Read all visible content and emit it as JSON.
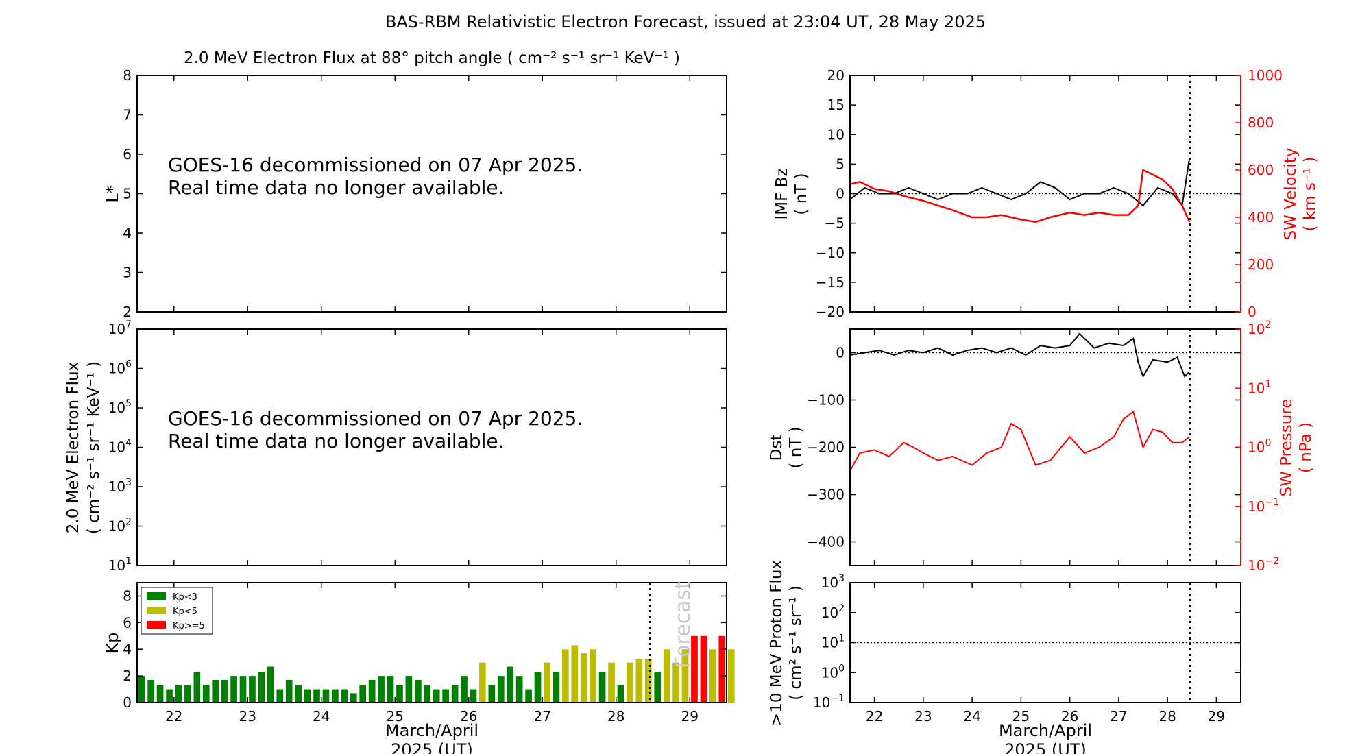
{
  "title": "BAS-RBM Relativistic Electron Forecast, issued at 23:04 UT, 28 May 2025",
  "colors": {
    "black": "#000000",
    "red": "#ff0000",
    "green": "#008000",
    "olive": "#bcbd00",
    "forecast_text": "#c8c8c8"
  },
  "notice": {
    "line1": "GOES-16 decommissioned on 07 Apr 2025.",
    "line2": "Real time data no longer available."
  },
  "x_axis": {
    "ticks": [
      "22",
      "23",
      "24",
      "25",
      "26",
      "27",
      "28",
      "29"
    ],
    "label_line1": "March/April",
    "label_line2": "2025 (UT)",
    "range_days": [
      21.5,
      29.5
    ],
    "issue_time_day": 28.46
  },
  "chart_data": [
    {
      "id": "lstar",
      "type": "heatmap",
      "title": "2.0 MeV Electron Flux at 88° pitch angle ( cm⁻² s⁻¹ sr⁻¹ KeV⁻¹ )",
      "ylabel": "L*",
      "ylim": [
        2,
        8
      ],
      "yticks": [
        "2",
        "3",
        "4",
        "5",
        "6",
        "7",
        "8"
      ]
    },
    {
      "id": "flux",
      "type": "line",
      "ylabel_line1": "2.0 MeV Electron Flux",
      "ylabel_line2": "( cm⁻² s⁻¹ sr⁻¹ KeV⁻¹ )",
      "scale": "log",
      "ylim": [
        10,
        10000000
      ],
      "ytick_exponents": [
        "1",
        "2",
        "3",
        "4",
        "5",
        "6",
        "7"
      ]
    },
    {
      "id": "kp",
      "type": "bar",
      "ylabel": "Kp",
      "ylim": [
        0,
        9
      ],
      "yticks": [
        "0",
        "2",
        "4",
        "6",
        "8"
      ],
      "legend": [
        "Kp<3",
        "Kp<5",
        "Kp>=5"
      ],
      "forecast_label": "Forecast",
      "bar_width_days": 0.125,
      "start_day": 21.5,
      "values": [
        2.0,
        1.7,
        1.3,
        1.0,
        1.3,
        1.3,
        2.3,
        1.3,
        1.7,
        1.7,
        2.0,
        2.0,
        2.0,
        2.3,
        2.7,
        1.0,
        1.7,
        1.3,
        1.0,
        1.0,
        1.0,
        1.0,
        1.0,
        0.7,
        1.3,
        1.7,
        2.0,
        2.0,
        1.3,
        2.0,
        1.7,
        1.3,
        1.0,
        1.0,
        1.3,
        2.0,
        1.0,
        3.0,
        1.3,
        2.0,
        2.7,
        2.0,
        1.0,
        2.3,
        3.0,
        2.3,
        4.0,
        4.3,
        3.7,
        4.0,
        2.3,
        3.0,
        1.3,
        3.0,
        3.3,
        3.3,
        2.3,
        4.0,
        3.0,
        4.0,
        5.0,
        5.0,
        4.0,
        5.0,
        4.0
      ]
    },
    {
      "id": "imf",
      "type": "line",
      "ylabel_line1": "IMF Bz",
      "ylabel_line2": "( nT )",
      "ylim": [
        -20,
        20
      ],
      "yticks": [
        "−20",
        "−15",
        "−10",
        "−5",
        "0",
        "5",
        "10",
        "15",
        "20"
      ],
      "y2label_line1": "SW Velocity",
      "y2label_line2": "( km s⁻¹ )",
      "y2lim": [
        0,
        1000
      ],
      "y2ticks": [
        "0",
        "200",
        "400",
        "600",
        "800",
        "1000"
      ],
      "series": [
        {
          "name": "IMF Bz",
          "axis": "left",
          "x": [
            21.5,
            21.8,
            22.1,
            22.4,
            22.7,
            23.0,
            23.3,
            23.6,
            23.9,
            24.2,
            24.5,
            24.8,
            25.1,
            25.4,
            25.7,
            26.0,
            26.3,
            26.6,
            26.9,
            27.2,
            27.5,
            27.8,
            28.1,
            28.3,
            28.45
          ],
          "y": [
            -1,
            1,
            0,
            0,
            1,
            0,
            -1,
            0,
            0,
            1,
            0,
            -1,
            0,
            2,
            1,
            -1,
            0,
            0,
            1,
            0,
            -2,
            1,
            0,
            -2,
            6
          ]
        },
        {
          "name": "SW Velocity",
          "axis": "right",
          "x": [
            21.5,
            21.7,
            22.0,
            22.3,
            22.6,
            23.0,
            23.3,
            23.6,
            24.0,
            24.3,
            24.6,
            25.0,
            25.3,
            25.6,
            26.0,
            26.3,
            26.6,
            26.9,
            27.2,
            27.4,
            27.5,
            27.7,
            27.9,
            28.1,
            28.3,
            28.45
          ],
          "y": [
            540,
            550,
            520,
            510,
            490,
            470,
            450,
            430,
            400,
            400,
            410,
            390,
            380,
            400,
            420,
            410,
            420,
            410,
            410,
            450,
            600,
            580,
            560,
            520,
            450,
            380
          ]
        }
      ]
    },
    {
      "id": "dst",
      "type": "line",
      "ylabel_line1": "Dst",
      "ylabel_line2": "( nT )",
      "ylim": [
        -450,
        50
      ],
      "yticks": [
        "−400",
        "−300",
        "−200",
        "−100",
        "0"
      ],
      "y2label_line1": "SW Pressure",
      "y2label_line2": "( nPa )",
      "scale2": "log",
      "y2lim": [
        0.01,
        100
      ],
      "y2tick_exponents": [
        "−2",
        "−1",
        "0",
        "1",
        "2"
      ],
      "series": [
        {
          "name": "Dst",
          "axis": "left",
          "x": [
            21.5,
            21.8,
            22.1,
            22.4,
            22.7,
            23.0,
            23.3,
            23.6,
            23.9,
            24.2,
            24.5,
            24.8,
            25.1,
            25.4,
            25.7,
            26.0,
            26.2,
            26.5,
            26.8,
            27.1,
            27.3,
            27.4,
            27.5,
            27.7,
            28.0,
            28.2,
            28.35,
            28.45
          ],
          "y": [
            -5,
            0,
            5,
            -5,
            5,
            0,
            10,
            -5,
            5,
            10,
            0,
            10,
            -5,
            15,
            10,
            15,
            40,
            10,
            20,
            15,
            30,
            -20,
            -50,
            -15,
            -20,
            -10,
            -50,
            -40
          ]
        },
        {
          "name": "SW Pressure",
          "axis": "right",
          "x": [
            21.5,
            21.7,
            22.0,
            22.3,
            22.6,
            22.8,
            23.0,
            23.3,
            23.6,
            24.0,
            24.3,
            24.6,
            24.8,
            25.0,
            25.3,
            25.6,
            26.0,
            26.3,
            26.6,
            26.9,
            27.1,
            27.3,
            27.5,
            27.7,
            27.9,
            28.1,
            28.3,
            28.45
          ],
          "y": [
            0.4,
            0.8,
            0.9,
            0.7,
            1.2,
            1.0,
            0.8,
            0.6,
            0.7,
            0.5,
            0.8,
            1.0,
            2.5,
            2.0,
            0.5,
            0.6,
            1.5,
            0.8,
            1.0,
            1.5,
            3.0,
            4.0,
            1.0,
            2.0,
            1.8,
            1.2,
            1.2,
            1.5
          ]
        }
      ]
    },
    {
      "id": "proton",
      "type": "line",
      "ylabel_line1": ">10 MeV Proton Flux",
      "ylabel_line2": "( cm² s⁻¹ sr⁻¹ )",
      "scale": "log",
      "ylim": [
        0.1,
        1000
      ],
      "ytick_exponents": [
        "−1",
        "0",
        "1",
        "2",
        "3"
      ],
      "threshold": 10
    }
  ]
}
